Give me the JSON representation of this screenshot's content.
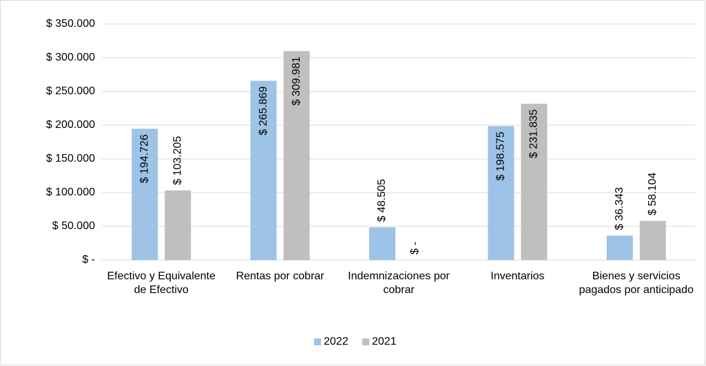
{
  "chart_data": {
    "type": "bar",
    "categories": [
      "Efectivo y Equivalente de Efectivo",
      "Rentas por cobrar",
      "Indemnizaciones por cobrar",
      "Inventarios",
      "Bienes y servicios pagados por anticipado"
    ],
    "series": [
      {
        "name": "2022",
        "color": "#9dc3e6",
        "values": [
          194726,
          265869,
          48505,
          198575,
          36343
        ],
        "value_labels": [
          "$ 194.726",
          "$ 265.869",
          "$ 48.505",
          "$ 198.575",
          "$ 36.343"
        ]
      },
      {
        "name": "2021",
        "color": "#bfbfbf",
        "values": [
          103205,
          309981,
          0,
          231835,
          58104
        ],
        "value_labels": [
          "$ 103.205",
          "$ 309.981",
          "$ -",
          "$ 231.835",
          "$ 58.104"
        ]
      }
    ],
    "ylim": [
      0,
      350000
    ],
    "yticks": [
      {
        "value": 0,
        "label": "$ -"
      },
      {
        "value": 50000,
        "label": "$ 50.000"
      },
      {
        "value": 100000,
        "label": "$ 100.000"
      },
      {
        "value": 150000,
        "label": "$ 150.000"
      },
      {
        "value": 200000,
        "label": "$ 200.000"
      },
      {
        "value": 250000,
        "label": "$ 250.000"
      },
      {
        "value": 300000,
        "label": "$ 300.000"
      },
      {
        "value": 350000,
        "label": "$ 350.000"
      }
    ],
    "grid": true,
    "legend": "bottom"
  }
}
